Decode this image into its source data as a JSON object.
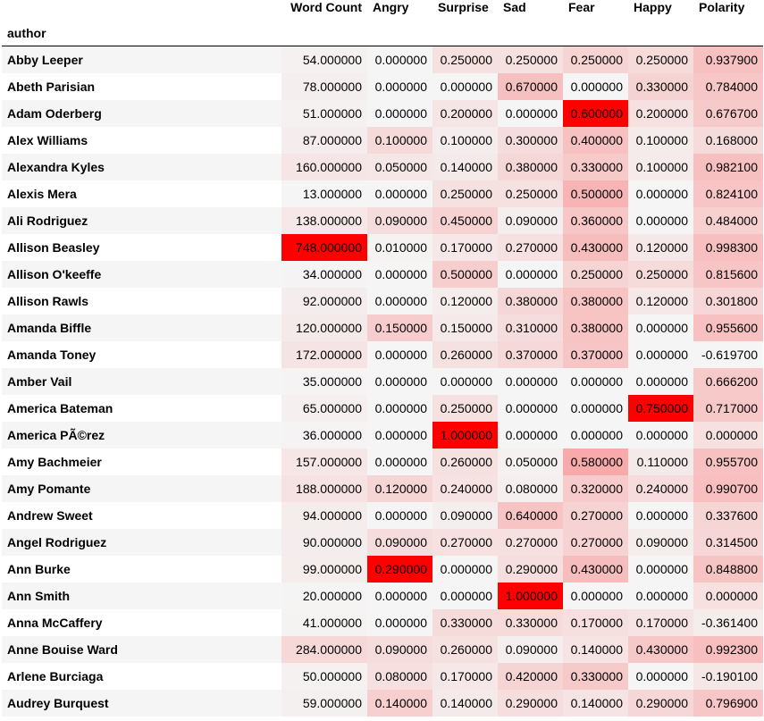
{
  "index_name": "author",
  "columns": [
    "Word Count",
    "Angry",
    "Surprise",
    "Sad",
    "Fear",
    "Happy",
    "Polarity"
  ],
  "rows": [
    {
      "author": "Abby Leeper",
      "values": [
        "54.000000",
        "0.000000",
        "0.250000",
        "0.250000",
        "0.250000",
        "0.250000",
        "0.937900"
      ]
    },
    {
      "author": "Abeth Parisian",
      "values": [
        "78.000000",
        "0.000000",
        "0.000000",
        "0.670000",
        "0.000000",
        "0.330000",
        "0.784000"
      ]
    },
    {
      "author": "Adam Oderberg",
      "values": [
        "51.000000",
        "0.000000",
        "0.200000",
        "0.000000",
        "0.600000",
        "0.200000",
        "0.676700"
      ]
    },
    {
      "author": "Alex Williams",
      "values": [
        "87.000000",
        "0.100000",
        "0.100000",
        "0.300000",
        "0.400000",
        "0.100000",
        "0.168000"
      ]
    },
    {
      "author": "Alexandra Kyles",
      "values": [
        "160.000000",
        "0.050000",
        "0.140000",
        "0.380000",
        "0.330000",
        "0.100000",
        "0.982100"
      ]
    },
    {
      "author": "Alexis Mera",
      "values": [
        "13.000000",
        "0.000000",
        "0.250000",
        "0.250000",
        "0.500000",
        "0.000000",
        "0.824100"
      ]
    },
    {
      "author": "Ali Rodriguez",
      "values": [
        "138.000000",
        "0.090000",
        "0.450000",
        "0.090000",
        "0.360000",
        "0.000000",
        "0.484000"
      ]
    },
    {
      "author": "Allison Beasley",
      "values": [
        "748.000000",
        "0.010000",
        "0.170000",
        "0.270000",
        "0.430000",
        "0.120000",
        "0.998300"
      ]
    },
    {
      "author": "Allison O'keeffe",
      "values": [
        "34.000000",
        "0.000000",
        "0.500000",
        "0.000000",
        "0.250000",
        "0.250000",
        "0.815600"
      ]
    },
    {
      "author": "Allison Rawls",
      "values": [
        "92.000000",
        "0.000000",
        "0.120000",
        "0.380000",
        "0.380000",
        "0.120000",
        "0.301800"
      ]
    },
    {
      "author": "Amanda Biffle",
      "values": [
        "120.000000",
        "0.150000",
        "0.150000",
        "0.310000",
        "0.380000",
        "0.000000",
        "0.955600"
      ]
    },
    {
      "author": "Amanda Toney",
      "values": [
        "172.000000",
        "0.000000",
        "0.260000",
        "0.370000",
        "0.370000",
        "0.000000",
        "-0.619700"
      ]
    },
    {
      "author": "Amber Vail",
      "values": [
        "35.000000",
        "0.000000",
        "0.000000",
        "0.000000",
        "0.000000",
        "0.000000",
        "0.666200"
      ]
    },
    {
      "author": "America Bateman",
      "values": [
        "65.000000",
        "0.000000",
        "0.250000",
        "0.000000",
        "0.000000",
        "0.750000",
        "0.717000"
      ]
    },
    {
      "author": "America PÃ©rez",
      "values": [
        "36.000000",
        "0.000000",
        "1.000000",
        "0.000000",
        "0.000000",
        "0.000000",
        "0.000000"
      ]
    },
    {
      "author": "Amy Bachmeier",
      "values": [
        "157.000000",
        "0.000000",
        "0.260000",
        "0.050000",
        "0.580000",
        "0.110000",
        "0.955700"
      ]
    },
    {
      "author": "Amy Pomante",
      "values": [
        "188.000000",
        "0.120000",
        "0.240000",
        "0.080000",
        "0.320000",
        "0.240000",
        "0.990700"
      ]
    },
    {
      "author": "Andrew Sweet",
      "values": [
        "94.000000",
        "0.000000",
        "0.090000",
        "0.640000",
        "0.270000",
        "0.000000",
        "0.337600"
      ]
    },
    {
      "author": "Angel Rodriguez",
      "values": [
        "90.000000",
        "0.090000",
        "0.270000",
        "0.270000",
        "0.270000",
        "0.090000",
        "0.314500"
      ]
    },
    {
      "author": "Ann Burke",
      "values": [
        "99.000000",
        "0.290000",
        "0.000000",
        "0.290000",
        "0.430000",
        "0.000000",
        "0.848800"
      ]
    },
    {
      "author": "Ann Smith",
      "values": [
        "20.000000",
        "0.000000",
        "0.000000",
        "1.000000",
        "0.000000",
        "0.000000",
        "0.000000"
      ]
    },
    {
      "author": "Anna McCaffery",
      "values": [
        "41.000000",
        "0.000000",
        "0.330000",
        "0.330000",
        "0.170000",
        "0.170000",
        "-0.361400"
      ]
    },
    {
      "author": "Anne Bouise Ward",
      "values": [
        "284.000000",
        "0.090000",
        "0.260000",
        "0.090000",
        "0.140000",
        "0.430000",
        "0.992300"
      ]
    },
    {
      "author": "Arlene Burciaga",
      "values": [
        "50.000000",
        "0.080000",
        "0.170000",
        "0.420000",
        "0.330000",
        "0.000000",
        "-0.190100"
      ]
    },
    {
      "author": "Audrey Burquest",
      "values": [
        "59.000000",
        "0.140000",
        "0.140000",
        "0.290000",
        "0.140000",
        "0.290000",
        "0.796900"
      ]
    }
  ],
  "colors": {
    "cell_base": "#f5f5f5",
    "cell_max": "#ff0000",
    "row_stripe": "#f5f5f5"
  }
}
